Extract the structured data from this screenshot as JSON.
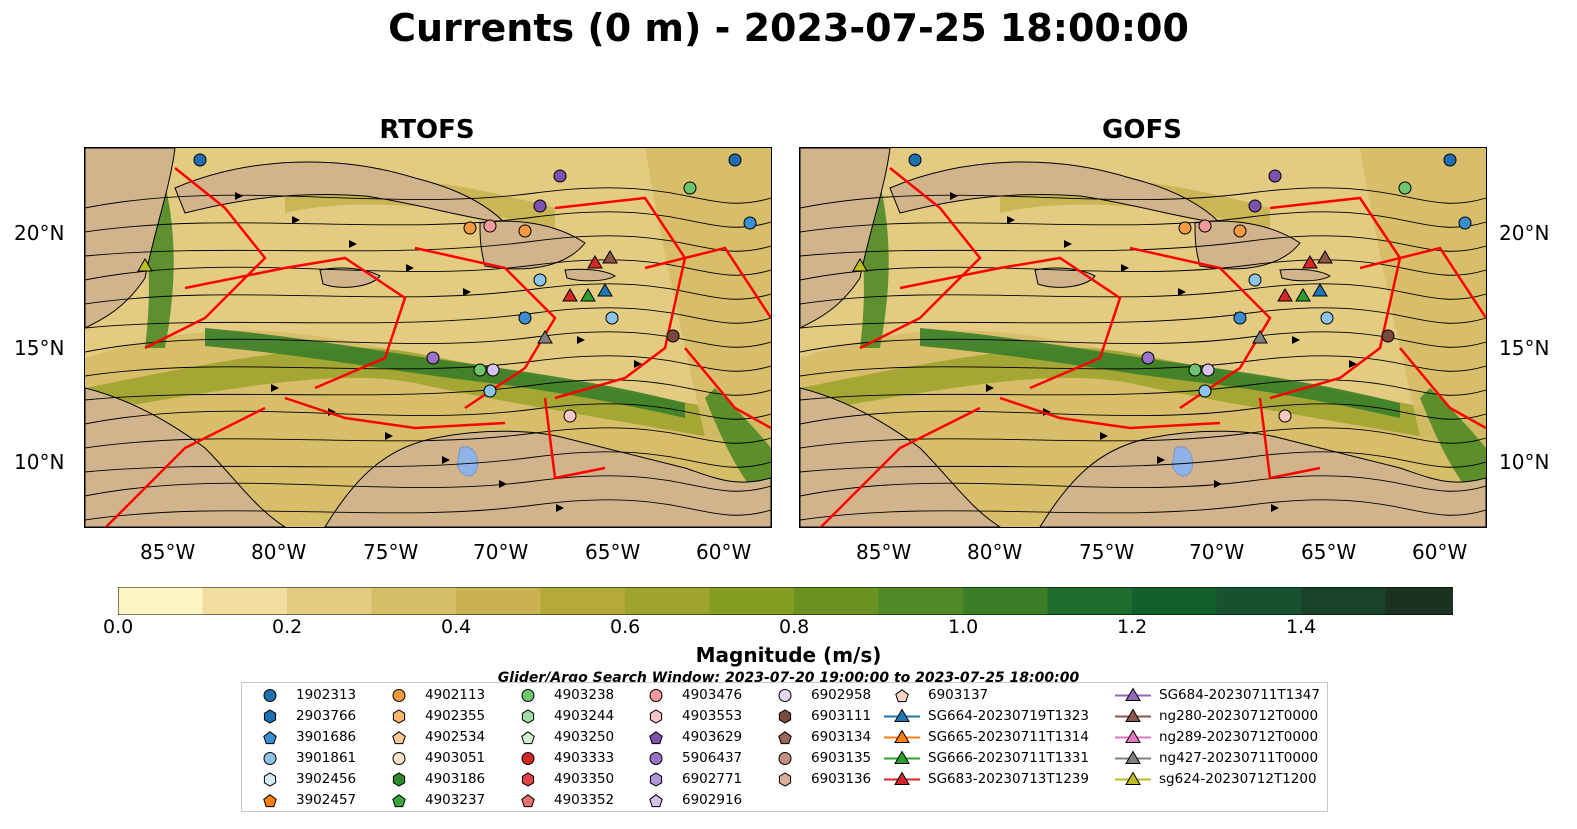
{
  "title": "Currents (0 m) - 2023-07-25 18:00:00",
  "panels": [
    {
      "title": "RTOFS"
    },
    {
      "title": "GOFS"
    }
  ],
  "axes": {
    "lon_ticks": [
      "85°W",
      "80°W",
      "75°W",
      "70°W",
      "65°W",
      "60°W"
    ],
    "lat_ticks": [
      "20°N",
      "15°N",
      "10°N"
    ]
  },
  "colorbar": {
    "label": "Magnitude (m/s)",
    "ticks": [
      "0.0",
      "0.2",
      "0.4",
      "0.6",
      "0.8",
      "1.0",
      "1.2",
      "1.4"
    ],
    "colors": [
      "#fdf5c2",
      "#f1dea0",
      "#e3cc82",
      "#d6bd67",
      "#c9b24f",
      "#b5a93c",
      "#9ea42d",
      "#859d21",
      "#6b9323",
      "#4f8a26",
      "#3a7e29",
      "#1f6d2c",
      "#13602e",
      "#165230",
      "#1a422b",
      "#1b3222"
    ]
  },
  "legend": {
    "title": "Glider/Argo Search Window: 2023-07-20 19:00:00 to 2023-07-25 18:00:00",
    "columns": [
      [
        {
          "label": "1902313",
          "marker": "circle",
          "color": "#1f6fb0"
        },
        {
          "label": "2903766",
          "marker": "hexagon",
          "color": "#1f6fb0"
        },
        {
          "label": "3901686",
          "marker": "pentagon",
          "color": "#3a8fd0"
        },
        {
          "label": "3901861",
          "marker": "circle",
          "color": "#8cc4ea"
        },
        {
          "label": "3902456",
          "marker": "hexagon",
          "color": "#d6ebf8"
        },
        {
          "label": "3902457",
          "marker": "pentagon",
          "color": "#ff7f0e"
        }
      ],
      [
        {
          "label": "4902113",
          "marker": "circle",
          "color": "#f59a3e"
        },
        {
          "label": "4902355",
          "marker": "hexagon",
          "color": "#fbb46c"
        },
        {
          "label": "4902534",
          "marker": "pentagon",
          "color": "#fcc999"
        },
        {
          "label": "4903051",
          "marker": "circle",
          "color": "#fde3c8"
        },
        {
          "label": "4903186",
          "marker": "hexagon",
          "color": "#2c8c2c"
        },
        {
          "label": "4903237",
          "marker": "pentagon",
          "color": "#3aa53a"
        }
      ],
      [
        {
          "label": "4903238",
          "marker": "circle",
          "color": "#6fc46f"
        },
        {
          "label": "4903244",
          "marker": "hexagon",
          "color": "#a3dca3"
        },
        {
          "label": "4903250",
          "marker": "pentagon",
          "color": "#d3f0d0"
        },
        {
          "label": "4903333",
          "marker": "circle",
          "color": "#d62728"
        },
        {
          "label": "4903350",
          "marker": "hexagon",
          "color": "#e04545"
        },
        {
          "label": "4903352",
          "marker": "pentagon",
          "color": "#ec7070"
        }
      ],
      [
        {
          "label": "4903476",
          "marker": "circle",
          "color": "#f49a9a"
        },
        {
          "label": "4903553",
          "marker": "hexagon",
          "color": "#fac6c6"
        },
        {
          "label": "4903629",
          "marker": "pentagon",
          "color": "#7b52ad"
        },
        {
          "label": "5906437",
          "marker": "circle",
          "color": "#9a72c8"
        },
        {
          "label": "6902771",
          "marker": "hexagon",
          "color": "#b497da"
        },
        {
          "label": "6902916",
          "marker": "pentagon",
          "color": "#d6c2ee"
        }
      ],
      [
        {
          "label": "6902958",
          "marker": "circle",
          "color": "#e6d8f6"
        },
        {
          "label": "6903111",
          "marker": "hexagon",
          "color": "#7a4a3e"
        },
        {
          "label": "6903134",
          "marker": "pentagon",
          "color": "#9a6858"
        },
        {
          "label": "6903135",
          "marker": "circle",
          "color": "#c29080"
        },
        {
          "label": "6903136",
          "marker": "hexagon",
          "color": "#dcae9c"
        },
        {
          "label": "",
          "marker": "none",
          "color": "#ffffff"
        }
      ],
      [
        {
          "label": "6903137",
          "marker": "pentagon",
          "color": "#f6d3c6"
        },
        {
          "label": "SG664-20230719T1323",
          "marker": "triangle-line",
          "color": "#1f77b4"
        },
        {
          "label": "SG665-20230711T1314",
          "marker": "triangle-line",
          "color": "#ff7f0e"
        },
        {
          "label": "SG666-20230711T1331",
          "marker": "triangle-line",
          "color": "#2ca02c"
        },
        {
          "label": "SG683-20230713T1239",
          "marker": "triangle-line",
          "color": "#d62728"
        },
        {
          "label": "",
          "marker": "none",
          "color": "#ffffff"
        }
      ],
      [
        {
          "label": "SG684-20230711T1347",
          "marker": "triangle-line",
          "color": "#9467bd"
        },
        {
          "label": "ng280-20230712T0000",
          "marker": "triangle-line",
          "color": "#8c564b"
        },
        {
          "label": "ng289-20230712T0000",
          "marker": "triangle-line",
          "color": "#e377c2"
        },
        {
          "label": "ng427-20230711T0000",
          "marker": "triangle-line",
          "color": "#7f7f7f"
        },
        {
          "label": "sg624-20230712T1200",
          "marker": "triangle-line",
          "color": "#bcbd22"
        },
        {
          "label": "",
          "marker": "none",
          "color": "#ffffff"
        }
      ]
    ]
  },
  "colors": {
    "land": "#d2b48c",
    "eez_boundary": "#ff0000",
    "streamline": "#000000",
    "lake": "#8fb3e6"
  }
}
